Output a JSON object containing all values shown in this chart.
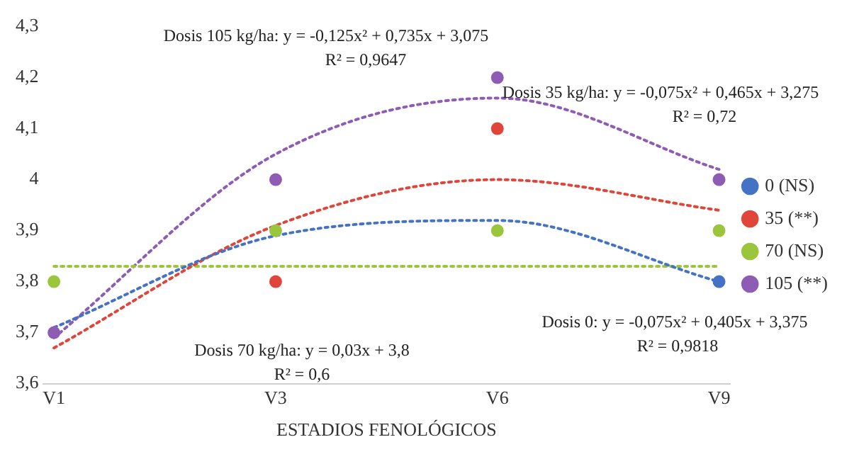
{
  "chart_data": {
    "type": "scatter",
    "xlabel": "ESTADIOS FENOLÓGICOS",
    "categories": [
      "V1",
      "V3",
      "V6",
      "V9"
    ],
    "ylim": [
      3.6,
      4.3
    ],
    "yticks": [
      {
        "value": 3.6,
        "label": "3,6"
      },
      {
        "value": 3.7,
        "label": "3,7"
      },
      {
        "value": 3.8,
        "label": "3,8"
      },
      {
        "value": 3.9,
        "label": "3,9"
      },
      {
        "value": 4.0,
        "label": "4"
      },
      {
        "value": 4.1,
        "label": "4,1"
      },
      {
        "value": 4.2,
        "label": "4,2"
      },
      {
        "value": 4.3,
        "label": "4,3"
      }
    ],
    "grid": false,
    "legend": "right",
    "marker": "circle",
    "series": [
      {
        "name": "0 (NS)",
        "color": "#4472c4",
        "values": [
          null,
          null,
          null,
          3.8
        ]
      },
      {
        "name": "35 (**)",
        "color": "#e0453a",
        "values": [
          null,
          3.8,
          4.1,
          null
        ]
      },
      {
        "name": "70 (NS)",
        "color": "#9bc53d",
        "values": [
          3.8,
          3.9,
          3.9,
          3.9
        ]
      },
      {
        "name": "105 (**)",
        "color": "#8e5bb5",
        "values": [
          3.7,
          4.0,
          4.2,
          4.0
        ]
      },
      {
        "type": "line",
        "color": "#4472c4",
        "line_style": "dotted",
        "marker": "none",
        "values": [
          3.71,
          3.89,
          3.92,
          3.8
        ]
      },
      {
        "type": "line",
        "color": "#e0453a",
        "line_style": "dotted",
        "marker": "none",
        "values": [
          3.67,
          3.91,
          4.0,
          3.94
        ]
      },
      {
        "type": "line",
        "color": "#9bc53d",
        "line_style": "dotted",
        "marker": "none",
        "values": [
          3.83,
          3.83,
          3.83,
          3.83
        ]
      },
      {
        "type": "line",
        "color": "#8e5bb5",
        "line_style": "dotted",
        "marker": "none",
        "values": [
          3.69,
          4.05,
          4.16,
          4.02
        ]
      }
    ],
    "annotations": [
      "Dosis 105 kg/ha: y = -0,125x² + 0,735x + 3,075",
      "R² = 0,9647",
      "Dosis 35 kg/ha: y = -0,075x² + 0,465x + 3,275",
      "R² = 0,72",
      "Dosis 0: y = -0,075x² + 0,405x + 3,375",
      "R² = 0,9818",
      "Dosis 70 kg/ha: y = 0,03x + 3,8",
      "R² = 0,6"
    ]
  }
}
